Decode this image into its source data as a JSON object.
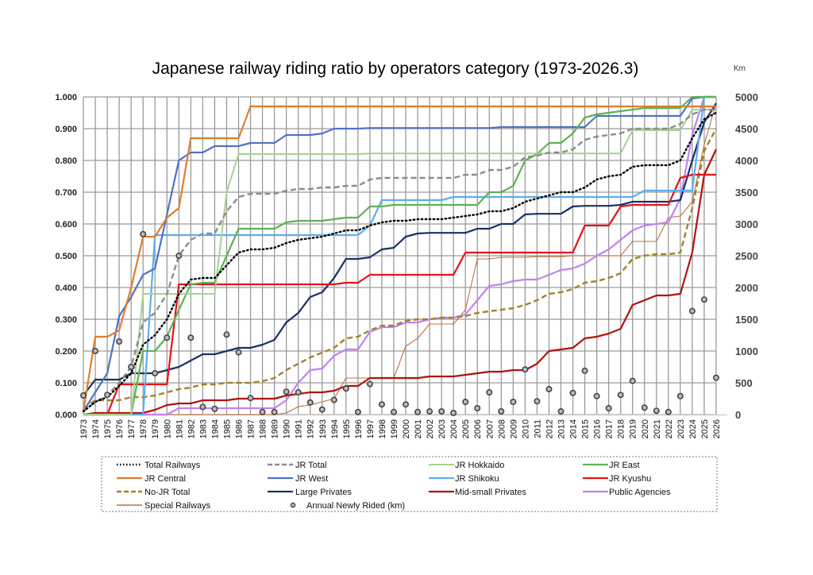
{
  "chart_data": {
    "type": "line",
    "title": "Japanese railway riding ratio by operators category (1973-2026.3)",
    "xlabel": "",
    "ylabel": "",
    "y2label": "Km",
    "ylim": [
      0,
      1
    ],
    "y2lim": [
      0,
      5000
    ],
    "grid": true,
    "legend_position": "bottom",
    "yticks": [
      "0.000",
      "0.100",
      "0.200",
      "0.300",
      "0.400",
      "0.500",
      "0.600",
      "0.700",
      "0.800",
      "0.900",
      "1.000"
    ],
    "y2ticks": [
      "0",
      "500",
      "1000",
      "1500",
      "2000",
      "2500",
      "3000",
      "3500",
      "4000",
      "4500",
      "5000"
    ],
    "x": [
      "1973",
      "1974",
      "1975",
      "1976",
      "1977",
      "1978",
      "1979",
      "1980",
      "1981",
      "1982",
      "1983",
      "1984",
      "1985",
      "1986",
      "1987",
      "1988",
      "1989",
      "1990",
      "1991",
      "1992",
      "1993",
      "1994",
      "1995",
      "1996",
      "1997",
      "1998",
      "1999",
      "2000",
      "2001",
      "2002",
      "2003",
      "2004",
      "2005",
      "2006",
      "2007",
      "2008",
      "2009",
      "2010",
      "2011",
      "2012",
      "2013",
      "2014",
      "2015",
      "2016",
      "2017",
      "2018",
      "2019",
      "2020",
      "2021",
      "2022",
      "2023",
      "2024",
      "2025",
      "2026"
    ],
    "series": [
      {
        "name": "Total Railways",
        "axis": "left",
        "color": "#000000",
        "style": "dotted",
        "width": 2.4,
        "values": [
          0.01,
          0.04,
          0.055,
          0.09,
          0.13,
          0.22,
          0.25,
          0.3,
          0.38,
          0.425,
          0.43,
          0.43,
          0.47,
          0.51,
          0.52,
          0.52,
          0.525,
          0.54,
          0.55,
          0.555,
          0.56,
          0.57,
          0.58,
          0.58,
          0.595,
          0.605,
          0.61,
          0.61,
          0.615,
          0.615,
          0.615,
          0.62,
          0.625,
          0.63,
          0.64,
          0.64,
          0.65,
          0.67,
          0.68,
          0.69,
          0.7,
          0.7,
          0.715,
          0.74,
          0.75,
          0.755,
          0.78,
          0.785,
          0.785,
          0.785,
          0.8,
          0.87,
          0.93,
          0.95
        ]
      },
      {
        "name": "JR Total",
        "axis": "left",
        "color": "#8c8c8c",
        "style": "dashed",
        "width": 2.4,
        "values": [
          0.01,
          0.04,
          0.06,
          0.1,
          0.15,
          0.29,
          0.32,
          0.38,
          0.5,
          0.55,
          0.57,
          0.57,
          0.64,
          0.685,
          0.695,
          0.695,
          0.695,
          0.705,
          0.71,
          0.71,
          0.715,
          0.715,
          0.72,
          0.72,
          0.74,
          0.745,
          0.745,
          0.745,
          0.745,
          0.745,
          0.745,
          0.745,
          0.755,
          0.755,
          0.77,
          0.77,
          0.78,
          0.81,
          0.815,
          0.825,
          0.825,
          0.835,
          0.865,
          0.875,
          0.88,
          0.885,
          0.9,
          0.9,
          0.9,
          0.9,
          0.915,
          0.945,
          0.96,
          0.96
        ]
      },
      {
        "name": "JR Hokkaido",
        "axis": "left",
        "color": "#a9d18e",
        "style": "solid",
        "width": 2,
        "values": [
          0,
          0,
          0,
          0,
          0,
          0.38,
          0.38,
          0.38,
          0.38,
          0.38,
          0.38,
          0.38,
          0.7,
          0.82,
          0.82,
          0.82,
          0.82,
          0.82,
          0.82,
          0.82,
          0.82,
          0.82,
          0.82,
          0.82,
          0.822,
          0.822,
          0.822,
          0.822,
          0.822,
          0.822,
          0.822,
          0.822,
          0.822,
          0.822,
          0.822,
          0.822,
          0.822,
          0.822,
          0.822,
          0.822,
          0.822,
          0.822,
          0.822,
          0.822,
          0.822,
          0.822,
          0.895,
          0.895,
          0.895,
          0.895,
          0.895,
          0.96,
          0.96,
          0.96
        ]
      },
      {
        "name": "JR East",
        "axis": "left",
        "color": "#5cb350",
        "style": "solid",
        "width": 2.2,
        "values": [
          0,
          0,
          0,
          0,
          0,
          0.2,
          0.2,
          0.245,
          0.33,
          0.41,
          0.415,
          0.415,
          0.5,
          0.585,
          0.585,
          0.585,
          0.585,
          0.605,
          0.61,
          0.61,
          0.61,
          0.615,
          0.62,
          0.62,
          0.655,
          0.655,
          0.66,
          0.66,
          0.66,
          0.66,
          0.66,
          0.66,
          0.66,
          0.66,
          0.7,
          0.7,
          0.72,
          0.8,
          0.82,
          0.855,
          0.855,
          0.885,
          0.935,
          0.945,
          0.95,
          0.955,
          0.96,
          0.965,
          0.965,
          0.965,
          0.965,
          1.0,
          1.0,
          1.0
        ]
      },
      {
        "name": "JR Central",
        "axis": "left",
        "color": "#e07d2c",
        "style": "solid",
        "width": 2.2,
        "values": [
          0.01,
          0.245,
          0.245,
          0.265,
          0.4,
          0.56,
          0.56,
          0.62,
          0.65,
          0.87,
          0.87,
          0.87,
          0.87,
          0.87,
          0.97,
          0.97,
          0.97,
          0.97,
          0.97,
          0.97,
          0.97,
          0.97,
          0.97,
          0.97,
          0.97,
          0.97,
          0.97,
          0.97,
          0.97,
          0.97,
          0.97,
          0.97,
          0.97,
          0.97,
          0.97,
          0.97,
          0.97,
          0.97,
          0.97,
          0.97,
          0.97,
          0.97,
          0.97,
          0.97,
          0.97,
          0.97,
          0.97,
          0.97,
          0.97,
          0.97,
          0.97,
          0.97,
          0.97,
          0.97
        ]
      },
      {
        "name": "JR West",
        "axis": "left",
        "color": "#4f72c9",
        "style": "solid",
        "width": 2.2,
        "values": [
          0.01,
          0.07,
          0.13,
          0.31,
          0.37,
          0.44,
          0.46,
          0.63,
          0.8,
          0.825,
          0.825,
          0.845,
          0.845,
          0.845,
          0.855,
          0.855,
          0.855,
          0.88,
          0.88,
          0.88,
          0.885,
          0.9,
          0.9,
          0.9,
          0.902,
          0.902,
          0.902,
          0.902,
          0.902,
          0.902,
          0.902,
          0.902,
          0.902,
          0.902,
          0.902,
          0.905,
          0.905,
          0.905,
          0.905,
          0.905,
          0.905,
          0.905,
          0.905,
          0.94,
          0.94,
          0.94,
          0.94,
          0.94,
          0.94,
          0.94,
          0.94,
          0.995,
          1.0,
          1.0
        ]
      },
      {
        "name": "JR Shikoku",
        "axis": "left",
        "color": "#5aaef0",
        "style": "solid",
        "width": 2.2,
        "values": [
          0,
          0,
          0,
          0,
          0,
          0,
          0.565,
          0.565,
          0.565,
          0.565,
          0.565,
          0.565,
          0.565,
          0.565,
          0.565,
          0.565,
          0.565,
          0.565,
          0.565,
          0.565,
          0.565,
          0.565,
          0.565,
          0.565,
          0.595,
          0.675,
          0.675,
          0.675,
          0.675,
          0.675,
          0.675,
          0.685,
          0.685,
          0.685,
          0.685,
          0.685,
          0.685,
          0.685,
          0.685,
          0.685,
          0.685,
          0.685,
          0.685,
          0.685,
          0.685,
          0.685,
          0.685,
          0.705,
          0.705,
          0.705,
          0.705,
          0.705,
          1.0,
          1.0
        ]
      },
      {
        "name": "JR Kyushu",
        "axis": "left",
        "color": "#e8121a",
        "style": "solid",
        "width": 2.2,
        "values": [
          0,
          0,
          0,
          0.095,
          0.095,
          0.095,
          0.095,
          0.095,
          0.41,
          0.41,
          0.41,
          0.41,
          0.41,
          0.41,
          0.41,
          0.41,
          0.41,
          0.41,
          0.41,
          0.41,
          0.41,
          0.41,
          0.415,
          0.415,
          0.44,
          0.44,
          0.44,
          0.44,
          0.44,
          0.44,
          0.44,
          0.44,
          0.51,
          0.51,
          0.51,
          0.51,
          0.51,
          0.51,
          0.51,
          0.51,
          0.51,
          0.51,
          0.595,
          0.595,
          0.595,
          0.655,
          0.66,
          0.66,
          0.66,
          0.66,
          0.745,
          0.755,
          0.755,
          0.755
        ]
      },
      {
        "name": "No-JR Total",
        "axis": "left",
        "color": "#a08428",
        "style": "dashed",
        "width": 2.4,
        "values": [
          0.02,
          0.045,
          0.045,
          0.045,
          0.055,
          0.055,
          0.06,
          0.07,
          0.08,
          0.085,
          0.095,
          0.095,
          0.1,
          0.1,
          0.1,
          0.105,
          0.115,
          0.14,
          0.16,
          0.18,
          0.195,
          0.21,
          0.24,
          0.245,
          0.265,
          0.28,
          0.28,
          0.295,
          0.3,
          0.3,
          0.305,
          0.305,
          0.31,
          0.32,
          0.325,
          0.33,
          0.335,
          0.345,
          0.36,
          0.38,
          0.385,
          0.395,
          0.415,
          0.42,
          0.43,
          0.445,
          0.49,
          0.5,
          0.505,
          0.505,
          0.51,
          0.65,
          0.83,
          0.9
        ]
      },
      {
        "name": "Large Privates",
        "axis": "left",
        "color": "#1b2f6b",
        "style": "solid",
        "width": 2.2,
        "values": [
          0.06,
          0.11,
          0.11,
          0.11,
          0.13,
          0.13,
          0.13,
          0.14,
          0.15,
          0.17,
          0.19,
          0.19,
          0.2,
          0.21,
          0.21,
          0.22,
          0.235,
          0.29,
          0.32,
          0.37,
          0.385,
          0.43,
          0.49,
          0.49,
          0.495,
          0.52,
          0.525,
          0.56,
          0.57,
          0.572,
          0.572,
          0.572,
          0.572,
          0.585,
          0.585,
          0.6,
          0.6,
          0.63,
          0.632,
          0.632,
          0.632,
          0.655,
          0.657,
          0.657,
          0.657,
          0.66,
          0.67,
          0.67,
          0.67,
          0.67,
          0.675,
          0.8,
          0.92,
          0.98
        ]
      },
      {
        "name": "Mid-small Privates",
        "axis": "left",
        "color": "#b0120f",
        "style": "solid",
        "width": 2.2,
        "values": [
          0,
          0.005,
          0.005,
          0.005,
          0.005,
          0.005,
          0.015,
          0.03,
          0.035,
          0.035,
          0.045,
          0.045,
          0.045,
          0.05,
          0.05,
          0.05,
          0.05,
          0.06,
          0.065,
          0.07,
          0.07,
          0.075,
          0.09,
          0.09,
          0.115,
          0.115,
          0.115,
          0.115,
          0.115,
          0.12,
          0.12,
          0.12,
          0.125,
          0.13,
          0.135,
          0.135,
          0.14,
          0.14,
          0.16,
          0.2,
          0.205,
          0.21,
          0.24,
          0.245,
          0.255,
          0.27,
          0.345,
          0.36,
          0.375,
          0.375,
          0.38,
          0.51,
          0.755,
          0.835
        ]
      },
      {
        "name": "Public  Agencies",
        "axis": "left",
        "color": "#c481f2",
        "style": "solid",
        "width": 2.2,
        "values": [
          0,
          0,
          0,
          0,
          0,
          0,
          0,
          0,
          0.02,
          0.02,
          0.02,
          0.02,
          0.02,
          0.02,
          0.02,
          0.02,
          0.02,
          0.045,
          0.1,
          0.14,
          0.145,
          0.185,
          0.205,
          0.205,
          0.26,
          0.275,
          0.275,
          0.29,
          0.29,
          0.3,
          0.305,
          0.305,
          0.315,
          0.36,
          0.405,
          0.41,
          0.42,
          0.425,
          0.425,
          0.44,
          0.455,
          0.46,
          0.475,
          0.5,
          0.52,
          0.55,
          0.58,
          0.595,
          0.6,
          0.605,
          0.68,
          0.88,
          1.0,
          1.0
        ]
      },
      {
        "name": "Special Railways",
        "axis": "left",
        "color": "#c0703e",
        "style": "solid",
        "width": 1.1,
        "values": [
          0,
          0,
          0,
          0,
          0,
          0,
          0,
          0,
          0,
          0,
          0,
          0,
          0,
          0,
          0,
          0,
          0,
          0.005,
          0.025,
          0.03,
          0.04,
          0.05,
          0.115,
          0.115,
          0.115,
          0.115,
          0.115,
          0.215,
          0.24,
          0.285,
          0.285,
          0.285,
          0.33,
          0.49,
          0.49,
          0.495,
          0.495,
          0.495,
          0.497,
          0.497,
          0.497,
          0.5,
          0.5,
          0.5,
          0.5,
          0.5,
          0.545,
          0.545,
          0.545,
          0.62,
          0.625,
          0.67,
          0.85,
          0.98
        ]
      },
      {
        "name": "Annual Newly Rided (km)",
        "axis": "right",
        "type": "scatter",
        "color": "#555555",
        "style": "marker",
        "values": [
          300,
          1000,
          310,
          1150,
          750,
          2840,
          650,
          1210,
          2500,
          1210,
          120,
          90,
          1260,
          980,
          260,
          40,
          40,
          360,
          350,
          190,
          80,
          230,
          410,
          40,
          480,
          160,
          40,
          160,
          40,
          50,
          50,
          25,
          200,
          100,
          350,
          50,
          200,
          710,
          210,
          400,
          50,
          340,
          690,
          290,
          100,
          310,
          530,
          110,
          60,
          40,
          290,
          1630,
          1810,
          580
        ]
      }
    ]
  },
  "legend": {
    "items": [
      {
        "label": "Total Railways",
        "series": 0
      },
      {
        "label": "JR Total",
        "series": 1
      },
      {
        "label": "JR Hokkaido",
        "series": 2
      },
      {
        "label": "JR East",
        "series": 3
      },
      {
        "label": "JR Central",
        "series": 4
      },
      {
        "label": "JR West",
        "series": 5
      },
      {
        "label": "JR Shikoku",
        "series": 6
      },
      {
        "label": "JR Kyushu",
        "series": 7
      },
      {
        "label": "No-JR Total",
        "series": 8
      },
      {
        "label": "Large Privates",
        "series": 9
      },
      {
        "label": "Mid-small Privates",
        "series": 10
      },
      {
        "label": "Public  Agencies",
        "series": 11
      },
      {
        "label": "Special Railways",
        "series": 12
      },
      {
        "label": "Annual Newly Rided (km)",
        "series": 13
      }
    ]
  }
}
